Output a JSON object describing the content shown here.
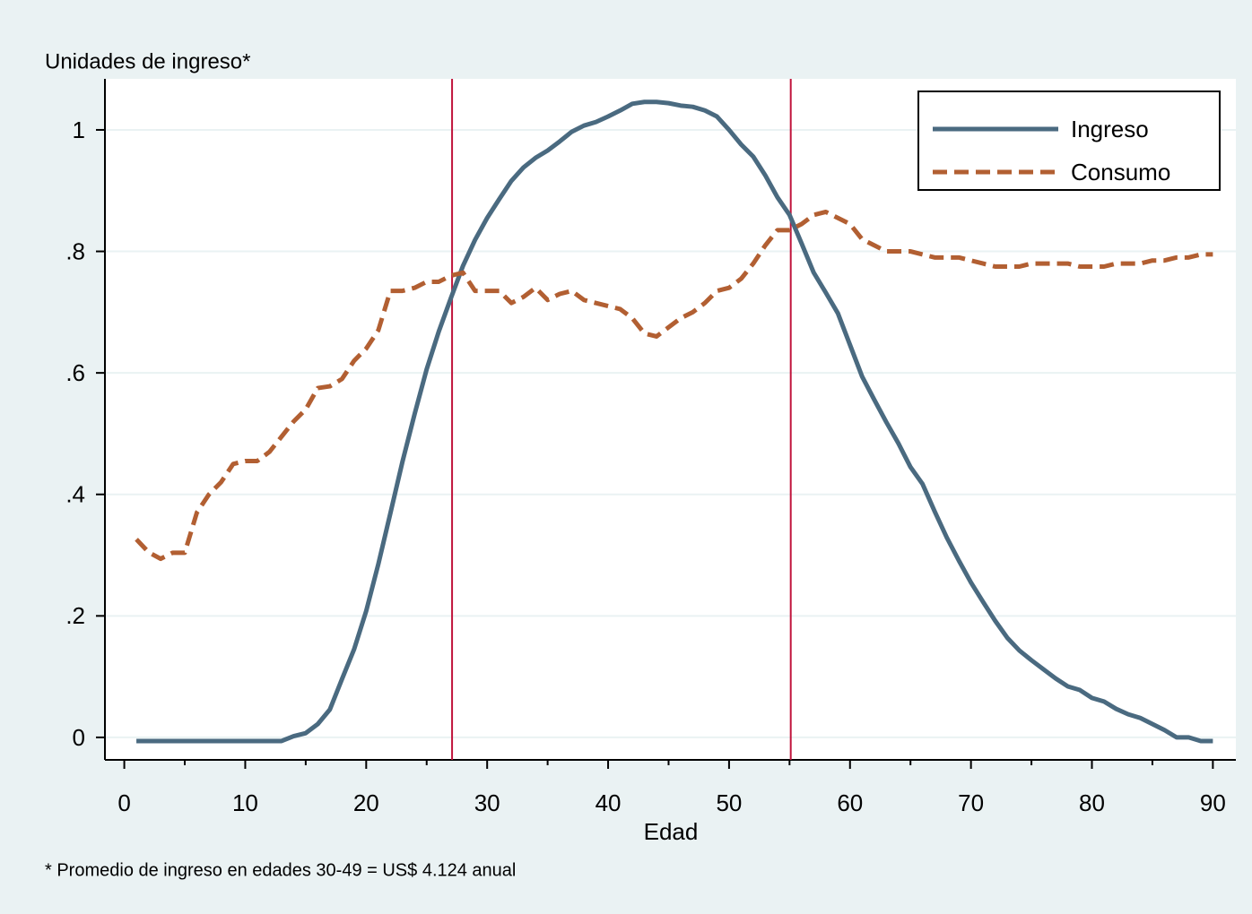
{
  "chart_data": {
    "type": "line",
    "y_title": "Unidades de ingreso*",
    "x_label": "Edad",
    "note": "* Promedio de ingreso en edades 30-49 = US$ 4.124 anual",
    "x": [
      1,
      2,
      3,
      4,
      5,
      6,
      7,
      8,
      9,
      10,
      11,
      12,
      13,
      14,
      15,
      16,
      17,
      18,
      19,
      20,
      21,
      22,
      23,
      24,
      25,
      26,
      27,
      28,
      29,
      30,
      31,
      32,
      33,
      34,
      35,
      36,
      37,
      38,
      39,
      40,
      41,
      42,
      43,
      44,
      45,
      46,
      47,
      48,
      49,
      50,
      51,
      52,
      53,
      54,
      55,
      56,
      57,
      58,
      59,
      60,
      61,
      62,
      63,
      64,
      65,
      66,
      67,
      68,
      69,
      70,
      71,
      72,
      73,
      74,
      75,
      76,
      77,
      78,
      79,
      80,
      81,
      82,
      83,
      84,
      85,
      86,
      87,
      88,
      89,
      90
    ],
    "series": [
      {
        "name": "Ingreso",
        "color": "#4a6a80",
        "dash": false,
        "values": [
          -0.006,
          -0.006,
          -0.006,
          -0.006,
          -0.006,
          -0.006,
          -0.006,
          -0.006,
          -0.006,
          -0.006,
          -0.006,
          -0.006,
          -0.006,
          0.002,
          0.007,
          0.022,
          0.046,
          0.096,
          0.145,
          0.208,
          0.285,
          0.369,
          0.454,
          0.532,
          0.606,
          0.668,
          0.723,
          0.776,
          0.819,
          0.855,
          0.886,
          0.916,
          0.938,
          0.954,
          0.966,
          0.981,
          0.997,
          1.007,
          1.013,
          1.022,
          1.032,
          1.043,
          1.046,
          1.046,
          1.044,
          1.04,
          1.038,
          1.032,
          1.022,
          1.0,
          0.976,
          0.956,
          0.925,
          0.889,
          0.86,
          0.813,
          0.765,
          0.732,
          0.698,
          0.646,
          0.594,
          0.556,
          0.519,
          0.484,
          0.445,
          0.417,
          0.372,
          0.329,
          0.291,
          0.255,
          0.223,
          0.192,
          0.164,
          0.143,
          0.127,
          0.112,
          0.097,
          0.084,
          0.078,
          0.065,
          0.059,
          0.047,
          0.038,
          0.032,
          0.022,
          0.012,
          0.0,
          0.0,
          -0.006,
          -0.006
        ]
      },
      {
        "name": "Consumo",
        "color": "#b25f32",
        "dash": true,
        "values": [
          0.326,
          0.305,
          0.294,
          0.304,
          0.304,
          0.37,
          0.4,
          0.42,
          0.45,
          0.455,
          0.455,
          0.47,
          0.495,
          0.52,
          0.54,
          0.575,
          0.578,
          0.59,
          0.62,
          0.64,
          0.67,
          0.735,
          0.735,
          0.74,
          0.75,
          0.75,
          0.76,
          0.765,
          0.735,
          0.735,
          0.735,
          0.715,
          0.725,
          0.74,
          0.72,
          0.73,
          0.735,
          0.72,
          0.715,
          0.71,
          0.705,
          0.69,
          0.665,
          0.66,
          0.675,
          0.69,
          0.7,
          0.715,
          0.735,
          0.74,
          0.755,
          0.78,
          0.81,
          0.835,
          0.835,
          0.845,
          0.86,
          0.865,
          0.855,
          0.845,
          0.82,
          0.81,
          0.8,
          0.8,
          0.8,
          0.795,
          0.79,
          0.79,
          0.79,
          0.785,
          0.78,
          0.775,
          0.775,
          0.775,
          0.78,
          0.78,
          0.78,
          0.78,
          0.775,
          0.775,
          0.775,
          0.78,
          0.78,
          0.78,
          0.785,
          0.785,
          0.79,
          0.79,
          0.795,
          0.795
        ]
      }
    ],
    "vlines": [
      27.1,
      55.1
    ],
    "vline_color": "#c0143c",
    "xlim": [
      -1.6,
      91.9
    ],
    "ylim": [
      -0.037,
      1.084
    ],
    "xticks": [
      0,
      10,
      20,
      30,
      40,
      50,
      60,
      70,
      80,
      90
    ],
    "xminorticks": [
      5,
      15,
      25,
      35,
      45,
      55,
      65,
      75,
      85
    ],
    "yticks": [
      0,
      {
        "value": 0.2,
        "label": ".2"
      },
      {
        "value": 0.4,
        "label": ".4"
      },
      {
        "value": 0.6,
        "label": ".6"
      },
      {
        "value": 0.8,
        "label": ".8"
      },
      1
    ],
    "grid": true,
    "legend": "top-right"
  }
}
